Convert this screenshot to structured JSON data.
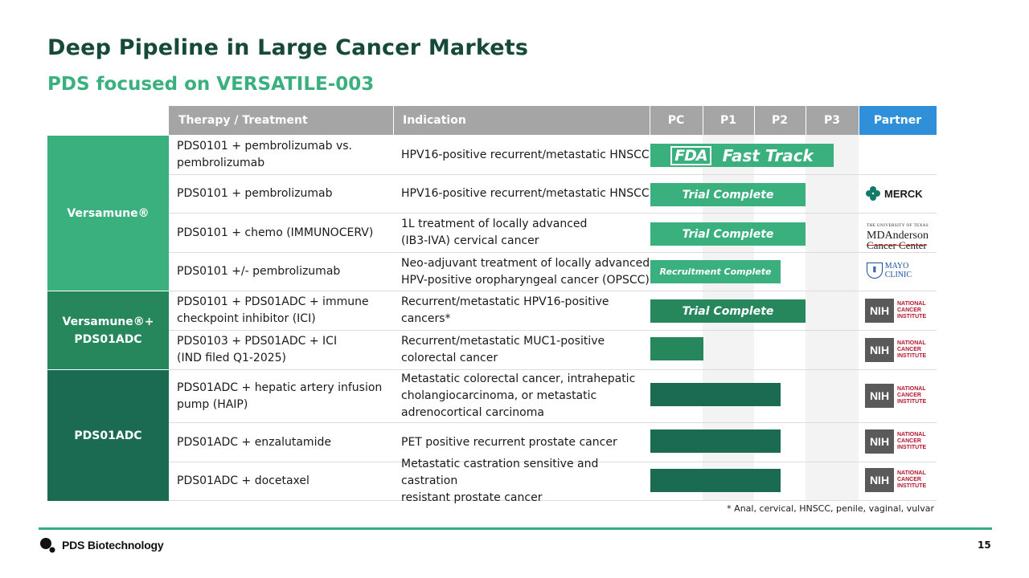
{
  "title": "Deep Pipeline in Large Cancer Markets",
  "subtitle": "PDS focused on VERSATILE-003",
  "table": {
    "headers": {
      "therapy": "Therapy / Treatment",
      "indication": "Indication",
      "pc": "PC",
      "p1": "P1",
      "p2": "P2",
      "p3": "P3",
      "partner": "Partner"
    },
    "bands": [
      {
        "label": "Versamune®"
      },
      {
        "label": "Versamune®+\nPDS01ADC"
      },
      {
        "label": "PDS01ADC"
      }
    ],
    "rows": [
      {
        "therapy": "PDS0101 + pembrolizumab vs.\npembrolizumab",
        "indication": "HPV16-positive recurrent/metastatic HNSCC",
        "bar_label": "",
        "partner": ""
      },
      {
        "therapy": "PDS0101 + pembrolizumab",
        "indication": "HPV16-positive recurrent/metastatic HNSCC",
        "bar_label": "Trial Complete",
        "partner": "MERCK"
      },
      {
        "therapy": "PDS0101 + chemo  (IMMUNOCERV)",
        "indication": "1L treatment of locally advanced\n(IB3-IVA) cervical cancer",
        "bar_label": "Trial Complete",
        "partner": "MD Anderson Cancer Center"
      },
      {
        "therapy": "PDS0101 +/- pembrolizumab",
        "indication": "Neo-adjuvant treatment of locally advanced\nHPV-positive oropharyngeal cancer (OPSCC)",
        "bar_label": "Recruitment Complete",
        "partner": "MAYO CLINIC"
      },
      {
        "therapy": "PDS0101   +   PDS01ADC + immune\ncheckpoint inhibitor (ICI)",
        "indication": "Recurrent/metastatic HPV16-positive\ncancers*",
        "bar_label": "Trial Complete",
        "partner": "NIH"
      },
      {
        "therapy": "PDS0103 + PDS01ADC + ICI\n(IND filed Q1-2025)",
        "indication": "Recurrent/metastatic MUC1-positive\ncolorectal cancer",
        "bar_label": "",
        "partner": "NIH"
      },
      {
        "therapy": "PDS01ADC + hepatic artery infusion\npump (HAIP)",
        "indication": "Metastatic colorectal cancer, intrahepatic\ncholangiocarcinoma, or metastatic\nadrenocortical carcinoma",
        "bar_label": "",
        "partner": "NIH"
      },
      {
        "therapy": "PDS01ADC + enzalutamide",
        "indication": "PET positive recurrent prostate cancer",
        "bar_label": "",
        "partner": "NIH"
      },
      {
        "therapy": "PDS01ADC + docetaxel",
        "indication": "Metastatic castration sensitive and castration\nresistant prostate cancer",
        "bar_label": "",
        "partner": "NIH"
      }
    ],
    "fda_badge": {
      "logo": "FDA",
      "label": "Fast Track"
    }
  },
  "partner_logos": {
    "merck": "MERCK",
    "mda_small": "THE UNIVERSITY OF TEXAS",
    "mda_big": "MDAnderson",
    "mda_cc": "Cancer Center",
    "mayo": "MAYO CLINIC",
    "nih_box": "NIH",
    "nih_text": "NATIONAL\nCANCER\nINSTITUTE"
  },
  "colors": {
    "band1": "#3bb07f",
    "band2": "#26875d",
    "band3": "#1b6a52",
    "bar_light": "#3bb07f",
    "bar_mid": "#26875d",
    "bar_dark": "#1b6a52",
    "header_gray": "#a5a5a5",
    "partner_blue": "#2f8fd8"
  },
  "footnote": "* Anal, cervical, HNSCC, penile, vaginal, vulvar",
  "footer": {
    "company": "PDS Biotechnology",
    "page": "15"
  }
}
